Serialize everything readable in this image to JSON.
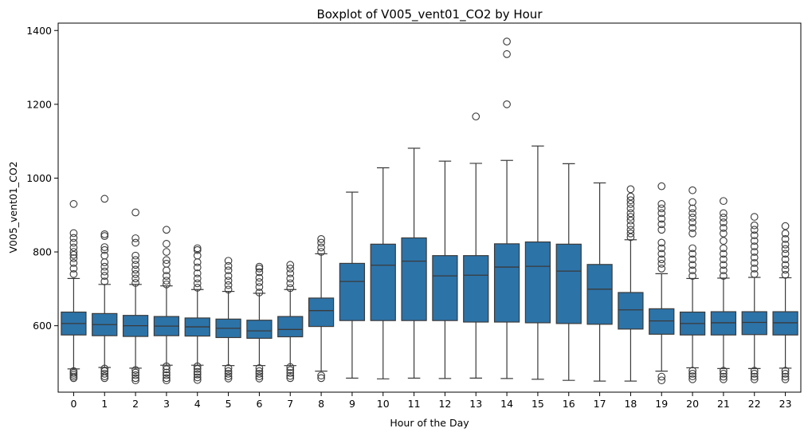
{
  "chart_data": {
    "type": "boxplot",
    "title": "Boxplot of V005_vent01_CO2 by Hour",
    "xlabel": "Hour of the Day",
    "ylabel": "V005_vent01_CO2",
    "ylim": [
      420,
      1420
    ],
    "yticks": [
      600,
      800,
      1000,
      1200,
      1400
    ],
    "grid": false,
    "legend": "none",
    "box_color": "#2c73a8",
    "line_color": "#3a3a3a",
    "categories": [
      "0",
      "1",
      "2",
      "3",
      "4",
      "5",
      "6",
      "7",
      "8",
      "9",
      "10",
      "11",
      "12",
      "13",
      "14",
      "15",
      "16",
      "17",
      "18",
      "19",
      "20",
      "21",
      "22",
      "23"
    ],
    "boxes": [
      {
        "hour": "0",
        "whisker_low": 483,
        "q1": 575,
        "median": 606,
        "q3": 637,
        "whisker_high": 728,
        "outliers": [
          458,
          462,
          467,
          472,
          477,
          740,
          755,
          770,
          783,
          792,
          800,
          812,
          825,
          838,
          851,
          930
        ]
      },
      {
        "hour": "1",
        "whisker_low": 487,
        "q1": 573,
        "median": 603,
        "q3": 633,
        "whisker_high": 712,
        "outliers": [
          458,
          463,
          470,
          477,
          484,
          720,
          735,
          747,
          760,
          772,
          790,
          805,
          813,
          843,
          848,
          944
        ]
      },
      {
        "hour": "2",
        "whisker_low": 485,
        "q1": 571,
        "median": 600,
        "q3": 628,
        "whisker_high": 712,
        "outliers": [
          452,
          458,
          466,
          473,
          480,
          716,
          728,
          740,
          752,
          765,
          778,
          790,
          825,
          837,
          907
        ]
      },
      {
        "hour": "3",
        "whisker_low": 493,
        "q1": 573,
        "median": 599,
        "q3": 625,
        "whisker_high": 708,
        "outliers": [
          452,
          458,
          466,
          473,
          482,
          490,
          712,
          722,
          735,
          750,
          768,
          778,
          800,
          822,
          860
        ]
      },
      {
        "hour": "4",
        "whisker_low": 493,
        "q1": 572,
        "median": 597,
        "q3": 621,
        "whisker_high": 698,
        "outliers": [
          453,
          460,
          468,
          475,
          483,
          490,
          703,
          715,
          728,
          742,
          758,
          772,
          790,
          805,
          810
        ]
      },
      {
        "hour": "5",
        "whisker_low": 492,
        "q1": 568,
        "median": 593,
        "q3": 618,
        "whisker_high": 693,
        "outliers": [
          457,
          463,
          470,
          477,
          485,
          698,
          710,
          722,
          735,
          750,
          762,
          776
        ]
      },
      {
        "hour": "6",
        "whisker_low": 492,
        "q1": 566,
        "median": 586,
        "q3": 615,
        "whisker_high": 688,
        "outliers": [
          457,
          463,
          470,
          477,
          485,
          690,
          705,
          718,
          730,
          745,
          755,
          760
        ]
      },
      {
        "hour": "7",
        "whisker_low": 492,
        "q1": 570,
        "median": 590,
        "q3": 625,
        "whisker_high": 698,
        "outliers": [
          458,
          464,
          472,
          480,
          488,
          702,
          715,
          728,
          742,
          755,
          765
        ]
      },
      {
        "hour": "8",
        "whisker_low": 477,
        "q1": 598,
        "median": 641,
        "q3": 675,
        "whisker_high": 795,
        "outliers": [
          458,
          465,
          800,
          812,
          825,
          835
        ]
      },
      {
        "hour": "9",
        "whisker_low": 458,
        "q1": 614,
        "median": 720,
        "q3": 769,
        "whisker_high": 962,
        "outliers": []
      },
      {
        "hour": "10",
        "whisker_low": 456,
        "q1": 614,
        "median": 764,
        "q3": 821,
        "whisker_high": 1028,
        "outliers": []
      },
      {
        "hour": "11",
        "whisker_low": 458,
        "q1": 614,
        "median": 775,
        "q3": 838,
        "whisker_high": 1081,
        "outliers": []
      },
      {
        "hour": "12",
        "whisker_low": 457,
        "q1": 614,
        "median": 735,
        "q3": 790,
        "whisker_high": 1046,
        "outliers": []
      },
      {
        "hour": "13",
        "whisker_low": 458,
        "q1": 610,
        "median": 737,
        "q3": 790,
        "whisker_high": 1040,
        "outliers": [
          1167
        ]
      },
      {
        "hour": "14",
        "whisker_low": 457,
        "q1": 610,
        "median": 759,
        "q3": 822,
        "whisker_high": 1048,
        "outliers": [
          1200,
          1336,
          1370
        ]
      },
      {
        "hour": "15",
        "whisker_low": 455,
        "q1": 608,
        "median": 761,
        "q3": 827,
        "whisker_high": 1087,
        "outliers": []
      },
      {
        "hour": "16",
        "whisker_low": 452,
        "q1": 606,
        "median": 748,
        "q3": 821,
        "whisker_high": 1039,
        "outliers": []
      },
      {
        "hour": "17",
        "whisker_low": 450,
        "q1": 604,
        "median": 699,
        "q3": 766,
        "whisker_high": 987,
        "outliers": []
      },
      {
        "hour": "18",
        "whisker_low": 450,
        "q1": 591,
        "median": 643,
        "q3": 690,
        "whisker_high": 833,
        "outliers": [
          840,
          850,
          860,
          872,
          885,
          895,
          905,
          918,
          930,
          940,
          950,
          970
        ]
      },
      {
        "hour": "19",
        "whisker_low": 477,
        "q1": 577,
        "median": 613,
        "q3": 646,
        "whisker_high": 741,
        "outliers": [
          452,
          462,
          755,
          768,
          780,
          795,
          810,
          825,
          860,
          875,
          890,
          905,
          918,
          930,
          978
        ]
      },
      {
        "hour": "20",
        "whisker_low": 486,
        "q1": 575,
        "median": 606,
        "q3": 637,
        "whisker_high": 728,
        "outliers": [
          455,
          463,
          470,
          478,
          735,
          750,
          765,
          780,
          795,
          810,
          850,
          865,
          880,
          893,
          905,
          918,
          935,
          967
        ]
      },
      {
        "hour": "21",
        "whisker_low": 484,
        "q1": 575,
        "median": 608,
        "q3": 638,
        "whisker_high": 729,
        "outliers": [
          455,
          462,
          470,
          478,
          735,
          750,
          765,
          780,
          795,
          810,
          830,
          850,
          865,
          880,
          893,
          905,
          938
        ]
      },
      {
        "hour": "22",
        "whisker_low": 484,
        "q1": 576,
        "median": 609,
        "q3": 638,
        "whisker_high": 731,
        "outliers": [
          455,
          462,
          470,
          478,
          740,
          755,
          770,
          785,
          800,
          815,
          830,
          845,
          860,
          872,
          895
        ]
      },
      {
        "hour": "23",
        "whisker_low": 485,
        "q1": 575,
        "median": 608,
        "q3": 638,
        "whisker_high": 730,
        "outliers": [
          455,
          462,
          470,
          478,
          738,
          752,
          765,
          780,
          795,
          808,
          820,
          835,
          850,
          870
        ]
      }
    ]
  }
}
